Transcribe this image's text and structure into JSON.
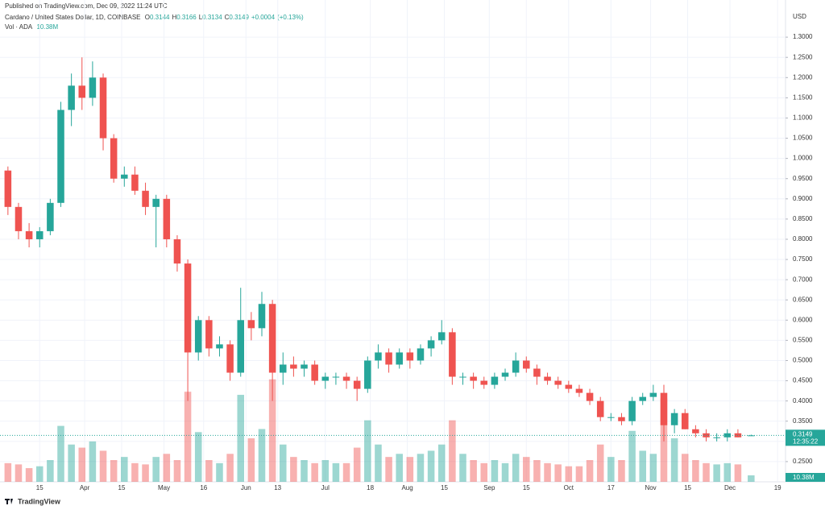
{
  "published": "Published on TradingView.com, Dec 09, 2022 11:24 UTC",
  "footer": "TradingView",
  "chart_data": {
    "type": "candlestick",
    "symbol": "Cardano / United States Dollar, 1D, COINBASE",
    "ohlc_legend": [
      {
        "label": "O",
        "value": 0.3144
      },
      {
        "label": "H",
        "value": 0.3166
      },
      {
        "label": "L",
        "value": 0.3134
      },
      {
        "label": "C",
        "value": 0.3149
      }
    ],
    "change": {
      "value": 0.0004,
      "label": "+0.0004"
    },
    "change_pct": {
      "value": 0.13,
      "label": "(+0.13%)"
    },
    "volume_name": "Vol · ADA",
    "last_volume": {
      "value": 10.38,
      "label": "10.38M"
    },
    "currency": "USD",
    "last_price": 0.3149,
    "countdown": "12:35:22",
    "up_color": "#26a69a",
    "down_color": "#ef5350",
    "grid": true,
    "x": [
      "2022-03-03",
      "2022-03-07",
      "2022-03-11",
      "2022-03-15",
      "2022-03-19",
      "2022-03-23",
      "2022-03-27",
      "2022-03-31",
      "2022-04-04",
      "2022-04-08",
      "2022-04-12",
      "2022-04-16",
      "2022-04-20",
      "2022-04-24",
      "2022-04-28",
      "2022-05-02",
      "2022-05-06",
      "2022-05-10",
      "2022-05-14",
      "2022-05-18",
      "2022-05-22",
      "2022-05-26",
      "2022-05-30",
      "2022-06-03",
      "2022-06-07",
      "2022-06-11",
      "2022-06-15",
      "2022-06-19",
      "2022-06-23",
      "2022-06-27",
      "2022-07-01",
      "2022-07-05",
      "2022-07-09",
      "2022-07-13",
      "2022-07-17",
      "2022-07-21",
      "2022-07-25",
      "2022-07-29",
      "2022-08-02",
      "2022-08-06",
      "2022-08-10",
      "2022-08-14",
      "2022-08-18",
      "2022-08-22",
      "2022-08-26",
      "2022-08-30",
      "2022-09-03",
      "2022-09-07",
      "2022-09-11",
      "2022-09-15",
      "2022-09-19",
      "2022-09-23",
      "2022-09-27",
      "2022-10-01",
      "2022-10-05",
      "2022-10-09",
      "2022-10-13",
      "2022-10-17",
      "2022-10-21",
      "2022-10-25",
      "2022-10-29",
      "2022-11-02",
      "2022-11-06",
      "2022-11-10",
      "2022-11-14",
      "2022-11-18",
      "2022-11-22",
      "2022-11-26",
      "2022-11-30",
      "2022-12-04",
      "2022-12-09"
    ],
    "open": [
      0.97,
      0.88,
      0.82,
      0.8,
      0.82,
      0.89,
      1.12,
      1.18,
      1.15,
      1.2,
      1.05,
      0.95,
      0.96,
      0.92,
      0.88,
      0.9,
      0.8,
      0.74,
      0.52,
      0.6,
      0.53,
      0.54,
      0.47,
      0.6,
      0.58,
      0.64,
      0.47,
      0.49,
      0.48,
      0.49,
      0.45,
      0.46,
      0.46,
      0.45,
      0.43,
      0.5,
      0.52,
      0.49,
      0.52,
      0.5,
      0.53,
      0.55,
      0.57,
      0.46,
      0.46,
      0.45,
      0.44,
      0.46,
      0.47,
      0.5,
      0.48,
      0.46,
      0.45,
      0.44,
      0.43,
      0.42,
      0.4,
      0.36,
      0.36,
      0.35,
      0.4,
      0.41,
      0.42,
      0.34,
      0.37,
      0.33,
      0.32,
      0.31,
      0.31,
      0.32,
      0.3144
    ],
    "high": [
      0.98,
      0.89,
      0.84,
      0.83,
      0.9,
      1.14,
      1.21,
      1.25,
      1.24,
      1.21,
      1.06,
      0.98,
      0.98,
      0.94,
      0.91,
      0.91,
      0.81,
      0.75,
      0.61,
      0.61,
      0.56,
      0.55,
      0.68,
      0.62,
      0.67,
      0.65,
      0.52,
      0.51,
      0.5,
      0.5,
      0.47,
      0.47,
      0.47,
      0.46,
      0.51,
      0.54,
      0.53,
      0.53,
      0.53,
      0.54,
      0.56,
      0.6,
      0.58,
      0.47,
      0.47,
      0.46,
      0.47,
      0.48,
      0.52,
      0.51,
      0.49,
      0.47,
      0.46,
      0.45,
      0.44,
      0.43,
      0.41,
      0.37,
      0.37,
      0.41,
      0.42,
      0.44,
      0.44,
      0.38,
      0.38,
      0.34,
      0.33,
      0.32,
      0.33,
      0.33,
      0.3166
    ],
    "low": [
      0.86,
      0.8,
      0.78,
      0.78,
      0.81,
      0.88,
      1.08,
      1.12,
      1.13,
      1.02,
      0.94,
      0.93,
      0.91,
      0.86,
      0.78,
      0.78,
      0.72,
      0.4,
      0.5,
      0.51,
      0.51,
      0.45,
      0.46,
      0.55,
      0.56,
      0.4,
      0.44,
      0.46,
      0.46,
      0.44,
      0.43,
      0.44,
      0.43,
      0.4,
      0.42,
      0.48,
      0.47,
      0.48,
      0.48,
      0.49,
      0.51,
      0.54,
      0.44,
      0.44,
      0.43,
      0.43,
      0.43,
      0.45,
      0.46,
      0.47,
      0.44,
      0.44,
      0.43,
      0.42,
      0.41,
      0.39,
      0.35,
      0.35,
      0.34,
      0.34,
      0.39,
      0.4,
      0.3,
      0.32,
      0.33,
      0.31,
      0.3,
      0.3,
      0.3,
      0.31,
      0.3134
    ],
    "close": [
      0.88,
      0.82,
      0.8,
      0.82,
      0.89,
      1.12,
      1.18,
      1.15,
      1.2,
      1.05,
      0.95,
      0.96,
      0.92,
      0.88,
      0.9,
      0.8,
      0.74,
      0.52,
      0.6,
      0.53,
      0.54,
      0.47,
      0.6,
      0.58,
      0.64,
      0.47,
      0.49,
      0.48,
      0.49,
      0.45,
      0.46,
      0.46,
      0.45,
      0.43,
      0.5,
      0.52,
      0.49,
      0.52,
      0.5,
      0.53,
      0.55,
      0.57,
      0.46,
      0.46,
      0.45,
      0.44,
      0.46,
      0.47,
      0.5,
      0.48,
      0.46,
      0.45,
      0.44,
      0.43,
      0.42,
      0.4,
      0.36,
      0.36,
      0.35,
      0.4,
      0.41,
      0.42,
      0.34,
      0.37,
      0.33,
      0.32,
      0.31,
      0.31,
      0.32,
      0.31,
      0.3149
    ],
    "volume": [
      30,
      28,
      22,
      25,
      35,
      90,
      60,
      55,
      65,
      50,
      35,
      40,
      30,
      28,
      40,
      45,
      35,
      145,
      80,
      35,
      30,
      45,
      140,
      70,
      85,
      165,
      60,
      40,
      35,
      30,
      35,
      30,
      30,
      55,
      99,
      60,
      40,
      45,
      40,
      45,
      50,
      60,
      99,
      45,
      35,
      30,
      35,
      30,
      45,
      40,
      35,
      30,
      28,
      25,
      25,
      35,
      60,
      40,
      35,
      82,
      50,
      45,
      134,
      70,
      45,
      35,
      30,
      28,
      30,
      28,
      10.38
    ],
    "xlim": [
      "2022-02-28",
      "2022-12-22"
    ],
    "xticks": [
      {
        "value": "2022-03-15",
        "label": "15"
      },
      {
        "value": "2022-04-01",
        "label": "Apr"
      },
      {
        "value": "2022-04-15",
        "label": "15"
      },
      {
        "value": "2022-05-01",
        "label": "May"
      },
      {
        "value": "2022-05-16",
        "label": "16"
      },
      {
        "value": "2022-06-01",
        "label": "Jun"
      },
      {
        "value": "2022-06-13",
        "label": "13"
      },
      {
        "value": "2022-07-01",
        "label": "Jul"
      },
      {
        "value": "2022-07-18",
        "label": "18"
      },
      {
        "value": "2022-08-01",
        "label": "Aug"
      },
      {
        "value": "2022-08-15",
        "label": "15"
      },
      {
        "value": "2022-09-01",
        "label": "Sep"
      },
      {
        "value": "2022-09-15",
        "label": "15"
      },
      {
        "value": "2022-10-01",
        "label": "Oct"
      },
      {
        "value": "2022-10-17",
        "label": "17"
      },
      {
        "value": "2022-11-01",
        "label": "Nov"
      },
      {
        "value": "2022-11-15",
        "label": "15"
      },
      {
        "value": "2022-12-01",
        "label": "Dec"
      },
      {
        "value": "2022-12-19",
        "label": "19"
      }
    ],
    "ylim": [
      0.2,
      1.368
    ],
    "yticks": [
      {
        "value": 0.25,
        "label": "0.2500"
      },
      {
        "value": 0.3,
        "label": "0.3000"
      },
      {
        "value": 0.35,
        "label": "0.3500"
      },
      {
        "value": 0.4,
        "label": "0.4000"
      },
      {
        "value": 0.45,
        "label": "0.4500"
      },
      {
        "value": 0.5,
        "label": "0.5000"
      },
      {
        "value": 0.55,
        "label": "0.5500"
      },
      {
        "value": 0.6,
        "label": "0.6000"
      },
      {
        "value": 0.65,
        "label": "0.6500"
      },
      {
        "value": 0.7,
        "label": "0.7000"
      },
      {
        "value": 0.75,
        "label": "0.7500"
      },
      {
        "value": 0.8,
        "label": "0.8000"
      },
      {
        "value": 0.85,
        "label": "0.8500"
      },
      {
        "value": 0.9,
        "label": "0.9000"
      },
      {
        "value": 0.95,
        "label": "0.9500"
      },
      {
        "value": 1.0,
        "label": "1.0000"
      },
      {
        "value": 1.05,
        "label": "1.0500"
      },
      {
        "value": 1.1,
        "label": "1.1000"
      },
      {
        "value": 1.15,
        "label": "1.1500"
      },
      {
        "value": 1.2,
        "label": "1.2000"
      },
      {
        "value": 1.25,
        "label": "1.2500"
      },
      {
        "value": 1.3,
        "label": "1.3000"
      }
    ],
    "volume_ylim": [
      0,
      760
    ]
  }
}
